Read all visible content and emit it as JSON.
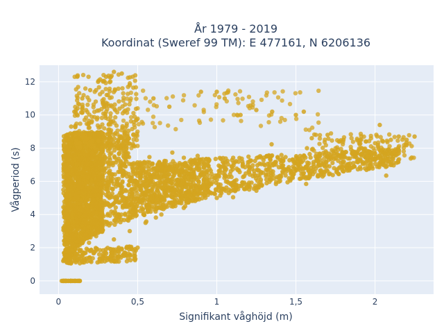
{
  "chart_data": {
    "type": "scatter",
    "title_lines": [
      "År 1979 - 2019",
      "Koordinat (Sweref 99 TM): E 477161, N 6206136"
    ],
    "xlabel": "Signifikant våghöjd (m)",
    "ylabel": "Vågperiod (s)",
    "xlim": [
      -0.12,
      2.37
    ],
    "ylim": [
      -0.8,
      13.0
    ],
    "x_ticks": [
      0,
      0.5,
      1,
      1.5,
      2
    ],
    "x_tick_labels": [
      "0",
      "0,5",
      "1",
      "1,5",
      "2"
    ],
    "y_ticks": [
      0,
      2,
      4,
      6,
      8,
      10,
      12
    ],
    "y_tick_labels": [
      "0",
      "2",
      "4",
      "6",
      "8",
      "10",
      "12"
    ],
    "grid": true,
    "legend": "none",
    "colors": {
      "marker": "#D4A520",
      "plot_background": "#E5ECF6",
      "grid": "#ffffff",
      "text": "#2a3f5f"
    },
    "description_of_distribution": "dense cloud of wave observations; heights 0–2.25 m, periods 1–12.6 s; zero-period cluster at heights 0–0.13 m",
    "points": [
      [
        0.02,
        0
      ],
      [
        0.04,
        0
      ],
      [
        0.06,
        0
      ],
      [
        0.08,
        0
      ],
      [
        0.1,
        0
      ],
      [
        0.12,
        0
      ],
      [
        0.03,
        1.2
      ],
      [
        0.05,
        1.5
      ],
      [
        0.08,
        1.1
      ],
      [
        0.1,
        1.4
      ],
      [
        0.12,
        1.6
      ],
      [
        0.15,
        1.7
      ],
      [
        0.2,
        1.8
      ],
      [
        0.3,
        1.9
      ],
      [
        0.4,
        1.9
      ],
      [
        0.5,
        2.0
      ],
      [
        0.05,
        3.0
      ],
      [
        0.05,
        5.0
      ],
      [
        0.05,
        7.0
      ],
      [
        0.05,
        8.0
      ],
      [
        0.08,
        9.3
      ],
      [
        0.1,
        10.2
      ],
      [
        0.12,
        10.4
      ],
      [
        0.15,
        11.0
      ],
      [
        0.2,
        11.5
      ],
      [
        0.25,
        12.0
      ],
      [
        0.3,
        12.3
      ],
      [
        0.35,
        12.6
      ],
      [
        0.4,
        12.5
      ],
      [
        0.45,
        11.8
      ],
      [
        0.35,
        2.5
      ],
      [
        0.45,
        3.0
      ],
      [
        0.55,
        3.5
      ],
      [
        0.65,
        4.0
      ],
      [
        0.8,
        4.5
      ],
      [
        1.0,
        5.0
      ],
      [
        1.2,
        5.8
      ],
      [
        1.4,
        6.2
      ],
      [
        1.6,
        6.6
      ],
      [
        1.8,
        7.0
      ],
      [
        2.0,
        7.3
      ],
      [
        0.6,
        11.0
      ],
      [
        0.7,
        10.5
      ],
      [
        0.9,
        11.4
      ],
      [
        1.0,
        11.4
      ],
      [
        1.05,
        11.0
      ],
      [
        1.15,
        10.0
      ],
      [
        1.25,
        10.3
      ],
      [
        1.35,
        10.2
      ],
      [
        1.5,
        10.0
      ],
      [
        1.55,
        10.2
      ],
      [
        1.6,
        8.6
      ],
      [
        1.7,
        8.8
      ],
      [
        1.8,
        8.5
      ],
      [
        1.9,
        8.3
      ],
      [
        2.0,
        8.3
      ],
      [
        2.05,
        8.4
      ],
      [
        2.1,
        8.5
      ],
      [
        2.15,
        8.7
      ],
      [
        2.2,
        8.5
      ],
      [
        2.25,
        8.7
      ],
      [
        2.03,
        9.4
      ],
      [
        1.57,
        8.0
      ],
      [
        1.75,
        7.8
      ],
      [
        1.95,
        7.7
      ],
      [
        2.15,
        7.9
      ]
    ]
  }
}
